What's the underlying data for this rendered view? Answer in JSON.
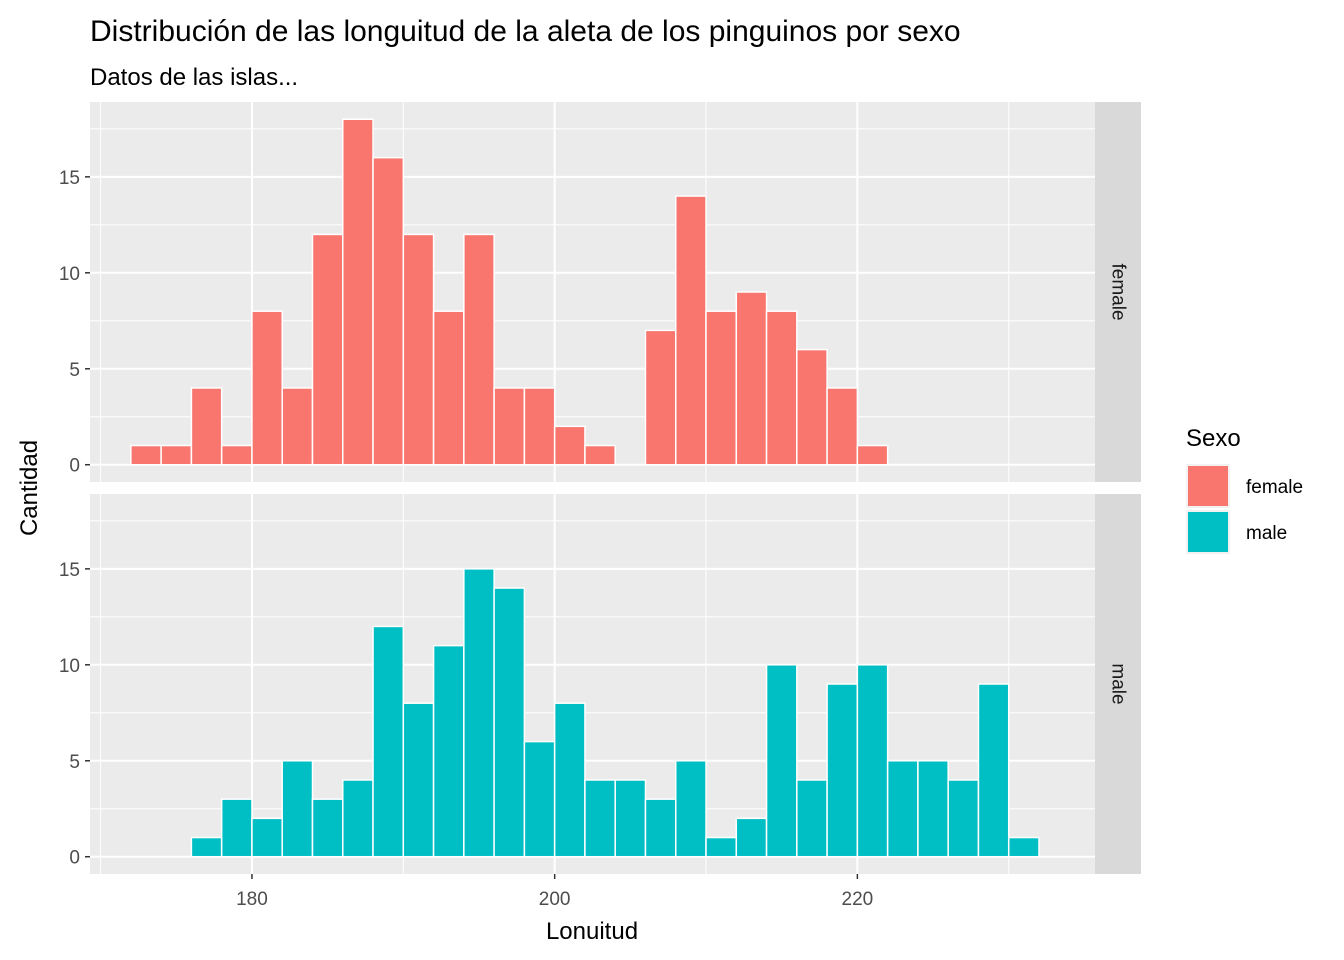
{
  "chart_data": {
    "type": "bar",
    "title": "Distribución de las longuitud de la aleta de los pinguinos por sexo",
    "subtitle": "Datos de las islas...",
    "xlabel": "Lonuitud",
    "ylabel": "Cantidad",
    "xlim": [
      169.3,
      235.7
    ],
    "ylim": [
      -0.9,
      18.9
    ],
    "x_ticks": [
      180,
      200,
      220
    ],
    "y_ticks": [
      0,
      5,
      10,
      15
    ],
    "bin_width": 2,
    "grid": true,
    "legend": {
      "title": "Sexo",
      "position": "right",
      "entries": [
        {
          "label": "female",
          "color": "#F8766D"
        },
        {
          "label": "male",
          "color": "#00BFC4"
        }
      ]
    },
    "facets": [
      {
        "strip": "female",
        "color": "#F8766D",
        "bins": [
          {
            "x": 173,
            "count": 1
          },
          {
            "x": 175,
            "count": 1
          },
          {
            "x": 177,
            "count": 4
          },
          {
            "x": 179,
            "count": 1
          },
          {
            "x": 181,
            "count": 8
          },
          {
            "x": 183,
            "count": 4
          },
          {
            "x": 185,
            "count": 12
          },
          {
            "x": 187,
            "count": 18
          },
          {
            "x": 189,
            "count": 16
          },
          {
            "x": 191,
            "count": 12
          },
          {
            "x": 193,
            "count": 8
          },
          {
            "x": 195,
            "count": 12
          },
          {
            "x": 197,
            "count": 4
          },
          {
            "x": 199,
            "count": 4
          },
          {
            "x": 201,
            "count": 2
          },
          {
            "x": 203,
            "count": 1
          },
          {
            "x": 205,
            "count": 0
          },
          {
            "x": 207,
            "count": 7
          },
          {
            "x": 209,
            "count": 14
          },
          {
            "x": 211,
            "count": 8
          },
          {
            "x": 213,
            "count": 9
          },
          {
            "x": 215,
            "count": 8
          },
          {
            "x": 217,
            "count": 6
          },
          {
            "x": 219,
            "count": 4
          },
          {
            "x": 221,
            "count": 1
          }
        ]
      },
      {
        "strip": "male",
        "color": "#00BFC4",
        "bins": [
          {
            "x": 177,
            "count": 1
          },
          {
            "x": 179,
            "count": 3
          },
          {
            "x": 181,
            "count": 2
          },
          {
            "x": 183,
            "count": 5
          },
          {
            "x": 185,
            "count": 3
          },
          {
            "x": 187,
            "count": 4
          },
          {
            "x": 189,
            "count": 12
          },
          {
            "x": 191,
            "count": 8
          },
          {
            "x": 193,
            "count": 11
          },
          {
            "x": 195,
            "count": 15
          },
          {
            "x": 197,
            "count": 14
          },
          {
            "x": 199,
            "count": 6
          },
          {
            "x": 201,
            "count": 8
          },
          {
            "x": 203,
            "count": 4
          },
          {
            "x": 205,
            "count": 4
          },
          {
            "x": 207,
            "count": 3
          },
          {
            "x": 209,
            "count": 5
          },
          {
            "x": 211,
            "count": 1
          },
          {
            "x": 213,
            "count": 2
          },
          {
            "x": 215,
            "count": 10
          },
          {
            "x": 217,
            "count": 4
          },
          {
            "x": 219,
            "count": 9
          },
          {
            "x": 221,
            "count": 10
          },
          {
            "x": 223,
            "count": 5
          },
          {
            "x": 225,
            "count": 5
          },
          {
            "x": 227,
            "count": 4
          },
          {
            "x": 229,
            "count": 9
          },
          {
            "x": 231,
            "count": 1
          }
        ]
      }
    ]
  }
}
